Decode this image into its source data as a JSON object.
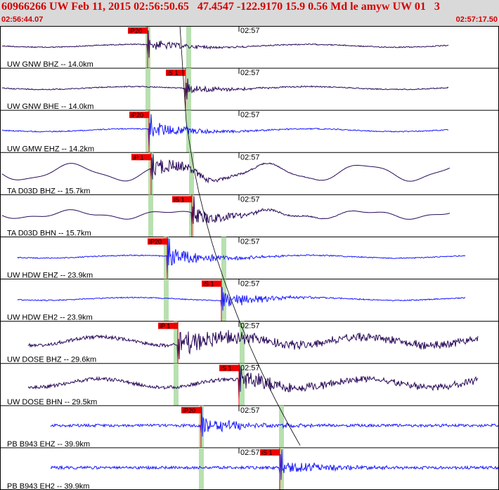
{
  "header": {
    "title": "60966266 UW Feb 11, 2015 02:56:50.65   47.4547 -122.9170 15.9 0.56 Md le amyw UW 01   3",
    "time_start": "02:56:44.07",
    "time_end": "02:57:17.50"
  },
  "colors": {
    "header_bg": "#d9d9d9",
    "header_text": "#d40000",
    "trace_broadband": "#2a0a5a",
    "trace_short_period": "#1a1aff",
    "pick": "#ee0000",
    "window": "#b8e0b0",
    "frame": "#000000"
  },
  "chart_data": {
    "type": "line",
    "title": "60966266 UW Feb 11, 2015 02:56:50.65   47.4547 -122.9170 15.9 0.56 Md le amyw UW 01   3",
    "x_range": [
      "02:56:44.07",
      "02:57:17.50"
    ],
    "minute_marker": "02:57",
    "traces": [
      {
        "label": "UW GNW BHZ -- 14.0km",
        "pick": "iP20",
        "kind": "broadband"
      },
      {
        "label": "UW GNW BHE -- 14.0km",
        "pick": "iS 1",
        "kind": "broadband"
      },
      {
        "label": "UW GMW EHZ -- 14.2km",
        "pick": "iP20",
        "kind": "short_period"
      },
      {
        "label": "TA D03D BHZ -- 15.7km",
        "pick": "iP 1",
        "kind": "broadband"
      },
      {
        "label": "TA D03D BHN -- 15.7km",
        "pick": "iS 1",
        "kind": "broadband"
      },
      {
        "label": "UW HDW EHZ -- 23.9km",
        "pick": "iP20",
        "kind": "short_period"
      },
      {
        "label": "UW HDW EH2 -- 23.9km",
        "pick": "iS 1",
        "kind": "short_period"
      },
      {
        "label": "UW DOSE BHZ -- 29.6km",
        "pick": "iP 1",
        "kind": "broadband"
      },
      {
        "label": "UW DOSE BHN -- 29.5km",
        "pick": "iS 1",
        "kind": "broadband"
      },
      {
        "label": "PB B943 EHZ -- 39.9km",
        "pick": "iP20",
        "kind": "short_period"
      },
      {
        "label": "PB B943 EH2 -- 39.9km",
        "pick": "iS 1",
        "kind": "short_period"
      }
    ]
  }
}
